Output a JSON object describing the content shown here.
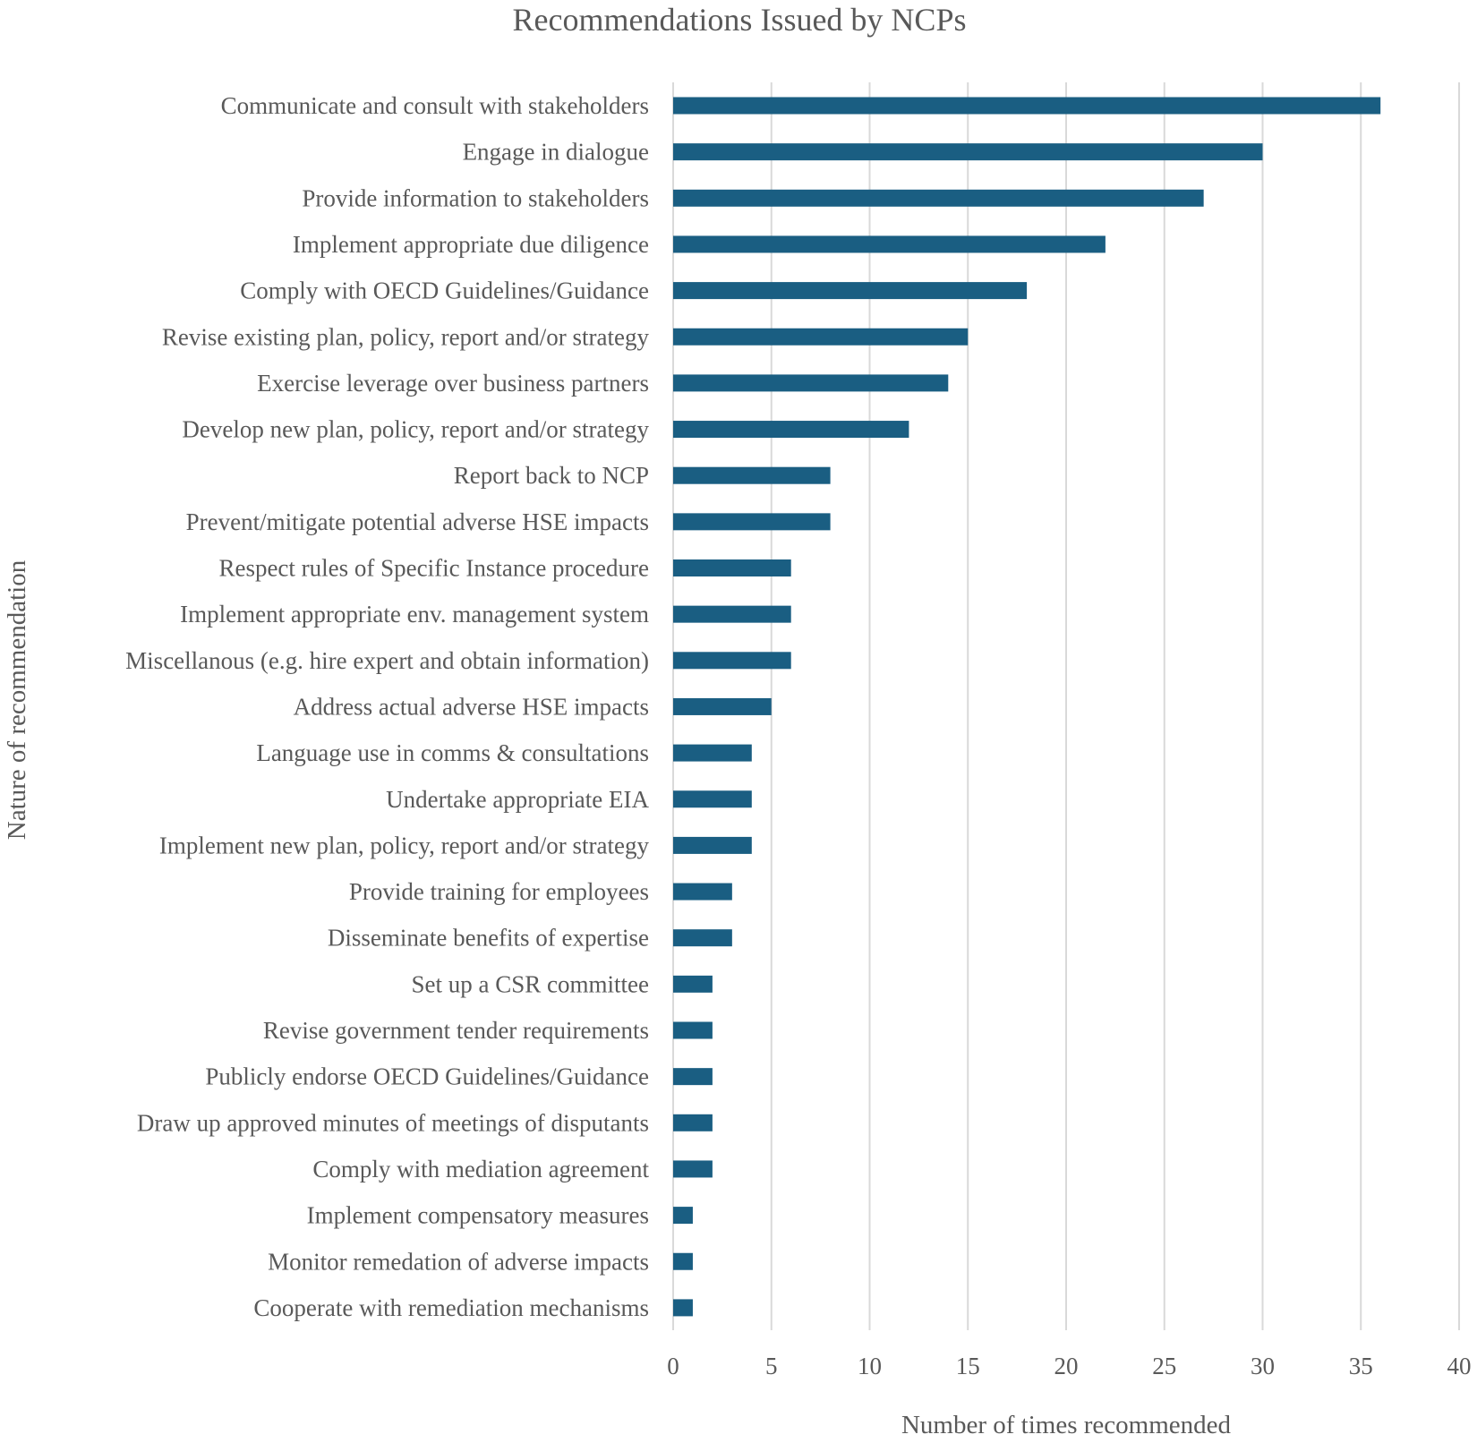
{
  "chart_data": {
    "type": "bar",
    "orientation": "horizontal",
    "title": "Recommendations Issued by NCPs",
    "xlabel": "Number of times recommended",
    "ylabel": "Nature of recommendation",
    "xlim": [
      0,
      40
    ],
    "xticks": [
      0,
      5,
      10,
      15,
      20,
      25,
      30,
      35,
      40
    ],
    "grid": "vertical",
    "legend": "none",
    "bar_color": "#1a5e82",
    "categories": [
      "Communicate and consult with stakeholders",
      "Engage in dialogue",
      "Provide information to stakeholders",
      "Implement appropriate due diligence",
      "Comply with OECD Guidelines/Guidance",
      "Revise existing plan, policy, report and/or strategy",
      "Exercise leverage over business partners",
      "Develop new plan, policy, report and/or strategy",
      "Report back to NCP",
      "Prevent/mitigate potential adverse HSE impacts",
      "Respect rules of Specific Instance procedure",
      "Implement appropriate env. management system",
      "Miscellanous (e.g. hire expert and obtain information)",
      "Address actual adverse HSE impacts",
      "Language use in comms & consultations",
      "Undertake appropriate EIA",
      "Implement new plan, policy, report and/or strategy",
      "Provide training for employees",
      "Disseminate benefits of expertise",
      "Set up a CSR committee",
      "Revise government tender requirements",
      "Publicly endorse OECD Guidelines/Guidance",
      "Draw up approved minutes of meetings of disputants",
      "Comply with mediation agreement",
      "Implement compensatory measures",
      "Monitor remedation of adverse impacts",
      "Cooperate with remediation mechanisms"
    ],
    "values": [
      36,
      30,
      27,
      22,
      18,
      15,
      14,
      12,
      8,
      8,
      6,
      6,
      6,
      5,
      4,
      4,
      4,
      3,
      3,
      2,
      2,
      2,
      2,
      2,
      1,
      1,
      1
    ]
  }
}
